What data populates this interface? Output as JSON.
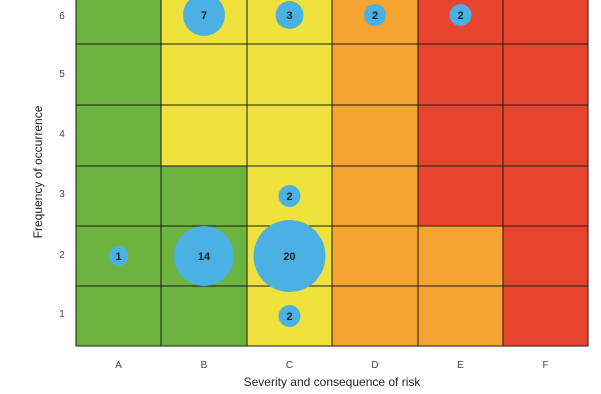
{
  "chart_data": {
    "type": "heatmap",
    "title": "",
    "xlabel": "Severity and consequence of risk",
    "ylabel": "Frequency of occurrence",
    "x_categories": [
      "A",
      "B",
      "C",
      "D",
      "E",
      "F"
    ],
    "y_categories": [
      "1",
      "2",
      "3",
      "4",
      "5",
      "6"
    ],
    "y_tick_labels": [
      "1",
      "2",
      "3",
      "4",
      "5",
      "6"
    ],
    "legend": "none",
    "colors": {
      "green": "#6cb33f",
      "yellow": "#f0e23d",
      "orange": "#f5a431",
      "red": "#e8452f"
    },
    "cell_colors": [
      [
        "green",
        "green",
        "yellow",
        "orange",
        "orange",
        "red"
      ],
      [
        "green",
        "green",
        "yellow",
        "orange",
        "orange",
        "red"
      ],
      [
        "green",
        "green",
        "yellow",
        "orange",
        "red",
        "red"
      ],
      [
        "green",
        "yellow",
        "yellow",
        "orange",
        "red",
        "red"
      ],
      [
        "green",
        "yellow",
        "yellow",
        "orange",
        "red",
        "red"
      ],
      [
        "green",
        "yellow",
        "yellow",
        "orange",
        "red",
        "red"
      ]
    ],
    "bubbles": [
      {
        "x": "B",
        "y": "6",
        "value": 7,
        "label": "7"
      },
      {
        "x": "C",
        "y": "6",
        "value": 3,
        "label": "3"
      },
      {
        "x": "D",
        "y": "6",
        "value": 2,
        "label": "2"
      },
      {
        "x": "E",
        "y": "6",
        "value": 2,
        "label": "2"
      },
      {
        "x": "C",
        "y": "3",
        "value": 2,
        "label": "2"
      },
      {
        "x": "A",
        "y": "2",
        "value": 1,
        "label": "1"
      },
      {
        "x": "B",
        "y": "2",
        "value": 14,
        "label": "14"
      },
      {
        "x": "C",
        "y": "2",
        "value": 20,
        "label": "20"
      },
      {
        "x": "C",
        "y": "1",
        "value": 2,
        "label": "2"
      }
    ]
  }
}
